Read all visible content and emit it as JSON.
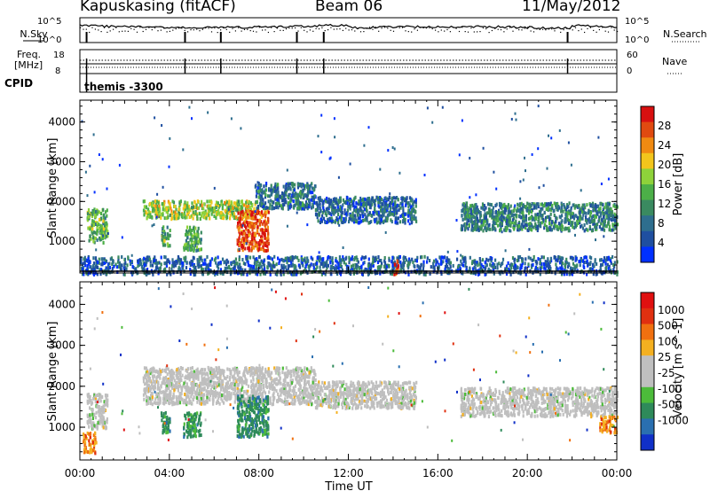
{
  "header": {
    "site": "Kapuskasing (fitACF)",
    "beam": "Beam 06",
    "date": "11/May/2012"
  },
  "summary": {
    "nsky_label": "N.Sky",
    "nsky_ticks": [
      "10^5",
      "10^0"
    ],
    "nsearch_label": "N.Search",
    "nsearch_ticks": [
      "10^5",
      "10^0"
    ],
    "freq_label": "Freq.",
    "freq_unit": "[MHz]",
    "freq_ticks": [
      "18",
      "8"
    ],
    "nave_label": "Nave",
    "nave_ticks": [
      "60",
      "0"
    ],
    "cpid_label": "CPID",
    "cpid_text": "themis -3300"
  },
  "chart_data": [
    {
      "type": "heatmap",
      "name": "power",
      "ylabel": "Slant Range [km]",
      "yticks": [
        1000,
        2000,
        3000,
        4000
      ],
      "ylim": [
        200,
        4550
      ],
      "xlim": [
        0,
        24
      ],
      "colorbar_label": "Power [dB]",
      "colorbar_ticks": [
        "4",
        "8",
        "12",
        "16",
        "20",
        "24",
        "28"
      ],
      "colorbar_colors": [
        "#0030ff",
        "#1f4fa0",
        "#2e6e8e",
        "#3a8a60",
        "#4caf48",
        "#8ed23a",
        "#f2c51c",
        "#f08a12",
        "#e04a10",
        "#d81010"
      ],
      "regions": [
        {
          "t": [
            0.3,
            1.2
          ],
          "r": [
            1000,
            1850
          ],
          "level": 0.45
        },
        {
          "t": [
            2.8,
            7.8
          ],
          "r": [
            1600,
            2050
          ],
          "level": 0.55
        },
        {
          "t": [
            7.8,
            10.5
          ],
          "r": [
            1850,
            2500
          ],
          "level": 0.25
        },
        {
          "t": [
            10.5,
            15.0
          ],
          "r": [
            1500,
            2150
          ],
          "level": 0.22
        },
        {
          "t": [
            17.0,
            24.0
          ],
          "r": [
            1300,
            2000
          ],
          "level": 0.3
        },
        {
          "t": [
            3.6,
            4.0
          ],
          "r": [
            900,
            1400
          ],
          "level": 0.45
        },
        {
          "t": [
            4.6,
            5.4
          ],
          "r": [
            800,
            1400
          ],
          "level": 0.4
        },
        {
          "t": [
            7.0,
            8.4
          ],
          "r": [
            800,
            1800
          ],
          "level": 0.85
        },
        {
          "t": [
            0.0,
            24.0
          ],
          "r": [
            200,
            650
          ],
          "level": 0.2
        },
        {
          "t": [
            14.0,
            14.2
          ],
          "r": [
            200,
            550
          ],
          "level": 0.9
        }
      ]
    },
    {
      "type": "heatmap",
      "name": "velocity",
      "ylabel": "Slant Range [km]",
      "yticks": [
        1000,
        2000,
        3000,
        4000
      ],
      "ylim": [
        200,
        4550
      ],
      "xlim": [
        0,
        24
      ],
      "xticks": [
        "00:00",
        "04:00",
        "08:00",
        "12:00",
        "16:00",
        "20:00",
        "00:00"
      ],
      "xlabel": "Time UT",
      "colorbar_label": "Velocity [m s^-1]",
      "colorbar_ticks": [
        "1000",
        "500",
        "100",
        "25",
        "-25",
        "-100",
        "-500",
        "-1000"
      ],
      "colorbar_colors": [
        "#1030c8",
        "#2a6fb0",
        "#2e8a5a",
        "#4cbb3a",
        "#bfbfbf",
        "#bfbfbf",
        "#f4b020",
        "#f07010",
        "#e03010",
        "#e01010"
      ],
      "regions": [
        {
          "t": [
            0.3,
            1.2
          ],
          "r": [
            1000,
            1850
          ],
          "class": "ground"
        },
        {
          "t": [
            2.8,
            10.5
          ],
          "r": [
            1600,
            2500
          ],
          "class": "ground"
        },
        {
          "t": [
            10.5,
            15.0
          ],
          "r": [
            1500,
            2150
          ],
          "class": "ground"
        },
        {
          "t": [
            17.0,
            24.0
          ],
          "r": [
            1300,
            2000
          ],
          "class": "ground"
        },
        {
          "t": [
            3.6,
            4.0
          ],
          "r": [
            900,
            1400
          ],
          "class": "green"
        },
        {
          "t": [
            4.6,
            5.4
          ],
          "r": [
            800,
            1400
          ],
          "class": "green"
        },
        {
          "t": [
            7.0,
            8.4
          ],
          "r": [
            800,
            1800
          ],
          "class": "green"
        },
        {
          "t": [
            0.1,
            0.7
          ],
          "r": [
            400,
            900
          ],
          "class": "orange"
        },
        {
          "t": [
            23.2,
            24.0
          ],
          "r": [
            900,
            1300
          ],
          "class": "orange"
        }
      ]
    }
  ]
}
